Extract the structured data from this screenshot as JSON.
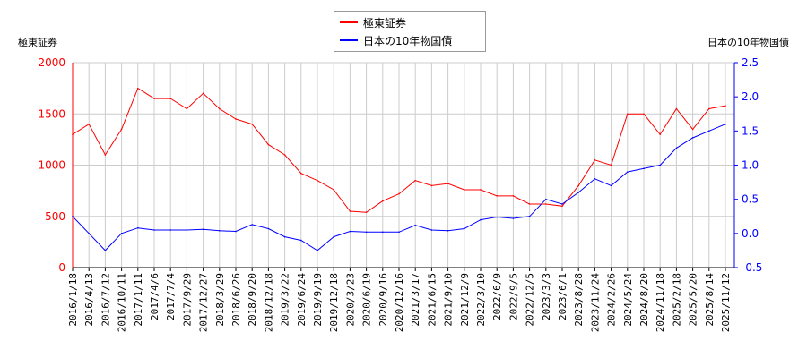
{
  "chart_data": {
    "type": "line",
    "left_axis_label": "極東証券",
    "right_axis_label": "日本の10年物国債",
    "left_ylim": [
      0,
      2000
    ],
    "left_ticks": [
      0,
      500,
      1000,
      1500,
      2000
    ],
    "right_ylim": [
      -0.5,
      2.5
    ],
    "right_ticks": [
      "-0.5",
      "0.0",
      "0.5",
      "1.0",
      "1.5",
      "2.0",
      "2.5"
    ],
    "grid": true,
    "legend_placement": "top-center",
    "categories": [
      "2016/1/18",
      "2016/4/13",
      "2016/7/12",
      "2016/10/11",
      "2017/1/11",
      "2017/4/6",
      "2017/7/4",
      "2017/9/29",
      "2017/12/27",
      "2018/3/29",
      "2018/6/26",
      "2018/9/20",
      "2018/12/18",
      "2019/3/22",
      "2019/6/24",
      "2019/9/19",
      "2019/12/18",
      "2020/3/23",
      "2020/6/19",
      "2020/9/16",
      "2020/12/16",
      "2021/3/17",
      "2021/6/15",
      "2021/9/10",
      "2021/12/9",
      "2022/3/10",
      "2022/6/9",
      "2022/9/5",
      "2022/12/5",
      "2023/3/3",
      "2023/6/1",
      "2023/8/28",
      "2023/11/24",
      "2024/2/26",
      "2024/5/24",
      "2024/8/20",
      "2024/11/18",
      "2025/2/18",
      "2025/5/20",
      "2025/8/14",
      "2025/11/12"
    ],
    "series": [
      {
        "name": "極東証券",
        "axis": "left",
        "color": "#ff0000",
        "values": [
          1300,
          1400,
          1100,
          1350,
          1750,
          1650,
          1650,
          1550,
          1700,
          1550,
          1450,
          1400,
          1200,
          1100,
          920,
          850,
          760,
          550,
          540,
          650,
          720,
          850,
          800,
          820,
          760,
          760,
          700,
          700,
          620,
          620,
          600,
          800,
          1050,
          1000,
          1500,
          1500,
          1300,
          1550,
          1350,
          1550,
          1580
        ]
      },
      {
        "name": "日本の10年物国債",
        "axis": "right",
        "color": "#0000ff",
        "values": [
          0.25,
          0.0,
          -0.25,
          0.0,
          0.08,
          0.05,
          0.05,
          0.05,
          0.06,
          0.04,
          0.03,
          0.13,
          0.07,
          -0.05,
          -0.1,
          -0.25,
          -0.05,
          0.03,
          0.02,
          0.02,
          0.02,
          0.12,
          0.05,
          0.04,
          0.07,
          0.2,
          0.24,
          0.22,
          0.25,
          0.5,
          0.43,
          0.6,
          0.8,
          0.7,
          0.9,
          0.95,
          1.0,
          1.25,
          1.4,
          1.5,
          1.6
        ]
      }
    ]
  }
}
